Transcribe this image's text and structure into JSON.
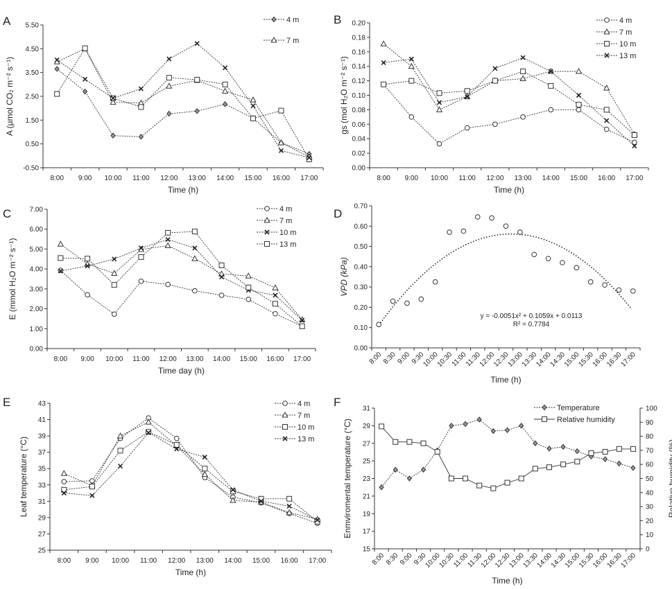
{
  "chart_data": [
    {
      "panel": "A",
      "type": "line",
      "xlabel": "Time (h)",
      "ylabel": "A (µmol CO₂ m⁻² s⁻¹)",
      "ylim": [
        -0.5,
        5.5
      ],
      "yticks": [
        "-0.50",
        "0.50",
        "1.50",
        "2.50",
        "3.50",
        "4.50",
        "5.50"
      ],
      "categories": [
        "8:00",
        "9:00",
        "10:00",
        "11:00",
        "12:00",
        "13:00",
        "14:00",
        "15:00",
        "16:00",
        "17:00"
      ],
      "legend_position": "top-right",
      "series": [
        {
          "name": "4 m",
          "marker": "diamond",
          "values": [
            3.65,
            2.7,
            0.85,
            0.8,
            1.77,
            1.88,
            2.17,
            1.58,
            0.55,
            0.08
          ]
        },
        {
          "name": "7 m",
          "marker": "triangle",
          "values": [
            3.95,
            4.5,
            2.25,
            2.22,
            2.93,
            3.17,
            2.72,
            2.35,
            0.55,
            -0.05
          ]
        },
        {
          "marker": "square",
          "values": [
            2.6,
            4.52,
            2.42,
            2.05,
            3.28,
            3.2,
            3.0,
            1.57,
            1.9,
            -0.15
          ]
        },
        {
          "marker": "x",
          "values": [
            4.03,
            3.22,
            2.42,
            2.82,
            4.07,
            4.72,
            3.7,
            2.1,
            0.22,
            -0.08
          ]
        }
      ]
    },
    {
      "panel": "B",
      "type": "line",
      "xlabel": "Time (h)",
      "ylabel": "gs (mol H₂O m⁻² s⁻¹)",
      "ylim": [
        0,
        0.2
      ],
      "yticks": [
        "0.00",
        "0.02",
        "0.04",
        "0.06",
        "0.08",
        "0.10",
        "0.12",
        "0.14",
        "0.16",
        "0.18",
        "0.20"
      ],
      "categories": [
        "8:00",
        "9:00",
        "10:00",
        "11:00",
        "12:00",
        "13:00",
        "14:00",
        "15:00",
        "16:00",
        "17:00"
      ],
      "legend_position": "top-right",
      "series": [
        {
          "name": "4 m",
          "marker": "circle",
          "values": [
            0.115,
            0.07,
            0.033,
            0.055,
            0.06,
            0.07,
            0.08,
            0.08,
            0.053,
            0.035
          ]
        },
        {
          "name": "7 m",
          "marker": "triangle",
          "values": [
            0.171,
            0.14,
            0.08,
            0.098,
            0.12,
            0.123,
            0.133,
            0.133,
            0.11,
            0.046
          ]
        },
        {
          "name": "10 m",
          "marker": "square",
          "values": [
            0.115,
            0.12,
            0.103,
            0.106,
            0.12,
            0.133,
            0.113,
            0.087,
            0.08,
            0.045
          ]
        },
        {
          "name": "13 m",
          "marker": "x",
          "values": [
            0.145,
            0.15,
            0.09,
            0.098,
            0.137,
            0.152,
            0.133,
            0.1,
            0.065,
            0.03
          ]
        }
      ]
    },
    {
      "panel": "C",
      "type": "line",
      "xlabel": "Time day (h)",
      "ylabel": "E (mmol H₂O m⁻² s⁻¹)",
      "ylim": [
        0,
        7
      ],
      "yticks": [
        "0.00",
        "1.00",
        "2.00",
        "3.00",
        "4.00",
        "5.00",
        "6.00",
        "7.00"
      ],
      "categories": [
        "8:00",
        "9:00",
        "10:00",
        "11:00",
        "12:00",
        "13:00",
        "14:00",
        "15:00",
        "16:00",
        "17:00"
      ],
      "legend_position": "top-right",
      "series": [
        {
          "name": "4 m",
          "marker": "circle",
          "values": [
            3.93,
            2.7,
            1.73,
            3.38,
            3.22,
            2.9,
            2.68,
            2.47,
            1.75,
            1.12
          ]
        },
        {
          "name": "7 m",
          "marker": "triangle",
          "values": [
            5.25,
            4.25,
            3.78,
            4.98,
            5.17,
            4.52,
            3.75,
            3.65,
            3.05,
            1.45
          ]
        },
        {
          "name": "10 m",
          "marker": "x",
          "values": [
            3.9,
            4.15,
            4.5,
            5.05,
            5.48,
            5.05,
            3.6,
            2.93,
            2.68,
            1.42
          ]
        },
        {
          "name": "13 m",
          "marker": "square",
          "values": [
            4.55,
            4.52,
            3.2,
            4.6,
            5.82,
            5.88,
            4.18,
            3.07,
            2.25,
            1.12
          ]
        }
      ]
    },
    {
      "panel": "D",
      "type": "scatter",
      "xlabel": "Time (h)",
      "ylabel": "VPD (kPa)",
      "ylim": [
        0,
        0.7
      ],
      "yticks": [
        "0.00",
        "0.10",
        "0.20",
        "0.30",
        "0.40",
        "0.50",
        "0.60",
        "0.70"
      ],
      "categories": [
        "8:00",
        "8:30",
        "9:00",
        "9:30",
        "10:00",
        "10:30",
        "11:00",
        "11:30",
        "12:00",
        "12:30",
        "13:00",
        "13:30",
        "14:00",
        "14:30",
        "15:00",
        "15:30",
        "16:00",
        "16:30",
        "17:00"
      ],
      "series": [
        {
          "marker": "circle",
          "values": [
            0.115,
            0.23,
            0.22,
            0.24,
            0.325,
            0.57,
            0.575,
            0.645,
            0.64,
            0.6,
            0.57,
            0.46,
            0.44,
            0.42,
            0.395,
            0.325,
            0.31,
            0.285,
            0.28
          ]
        }
      ],
      "trendline": {
        "type": "polynomial",
        "coefficients": [
          -0.0051,
          0.1059,
          0.0113
        ],
        "equation": "y = -0.0051x² + 0.1059x + 0.0113",
        "r2_label": "R² = 0.7784"
      }
    },
    {
      "panel": "E",
      "type": "line",
      "xlabel": "Time (h)",
      "ylabel": "Leaf temperature (°C)",
      "ylim": [
        25,
        43
      ],
      "yticks": [
        "25",
        "27",
        "29",
        "31",
        "33",
        "35",
        "37",
        "39",
        "41",
        "43"
      ],
      "categories": [
        "8:00",
        "9:00",
        "10:00",
        "11:00",
        "12:00",
        "13:00",
        "14:00",
        "15:00",
        "16:00",
        "17:00"
      ],
      "legend_position": "top-right",
      "series": [
        {
          "name": "4 m",
          "marker": "circle",
          "values": [
            33.4,
            33.5,
            38.7,
            41.2,
            38.7,
            33.9,
            31.5,
            30.8,
            29.5,
            28.3
          ]
        },
        {
          "name": "7 m",
          "marker": "triangle",
          "values": [
            34.4,
            32.9,
            39.0,
            40.7,
            37.8,
            34.3,
            31.1,
            30.9,
            29.6,
            28.8
          ]
        },
        {
          "name": "10 m",
          "marker": "square",
          "values": [
            32.4,
            32.8,
            37.2,
            39.5,
            37.9,
            35.0,
            32.2,
            31.3,
            31.3,
            28.5
          ]
        },
        {
          "name": "13 m",
          "marker": "x",
          "values": [
            32.0,
            31.7,
            35.3,
            39.4,
            37.4,
            36.4,
            32.4,
            31.0,
            30.4,
            28.7
          ]
        }
      ]
    },
    {
      "panel": "F",
      "type": "line",
      "xlabel": "Time (h)",
      "ylabel": "Enmviromental temperature (°C)",
      "y2label": "Relative humidity (%)",
      "ylim": [
        15,
        31
      ],
      "yticks": [
        "15",
        "17",
        "19",
        "21",
        "23",
        "25",
        "27",
        "29",
        "31"
      ],
      "y2lim": [
        0,
        100
      ],
      "y2ticks": [
        "0",
        "10",
        "20",
        "30",
        "40",
        "50",
        "60",
        "70",
        "80",
        "90",
        "100"
      ],
      "categories": [
        "8:00",
        "8:30",
        "9:00",
        "9:30",
        "10:00",
        "10:30",
        "11:00",
        "11:30",
        "12:00",
        "12:30",
        "13:00",
        "13:30",
        "14:00",
        "14:30",
        "15:00",
        "15:30",
        "16:00",
        "16:30",
        "17:00"
      ],
      "legend_position": "top-right",
      "series": [
        {
          "name": "Temperature",
          "marker": "diamond",
          "axis": "left",
          "dashed": true,
          "values": [
            22,
            24,
            23,
            24,
            26.2,
            29,
            29.2,
            29.7,
            28.4,
            28.5,
            29,
            27,
            26.4,
            26.6,
            26.1,
            25.5,
            25.2,
            24.7,
            24.2
          ]
        },
        {
          "name": "Relative humidity",
          "marker": "square",
          "axis": "right",
          "dashed": false,
          "values": [
            87,
            76,
            76,
            75,
            69,
            50,
            50,
            45,
            43,
            47,
            50,
            57,
            58,
            60,
            62,
            68,
            69,
            71,
            71
          ]
        }
      ]
    }
  ]
}
